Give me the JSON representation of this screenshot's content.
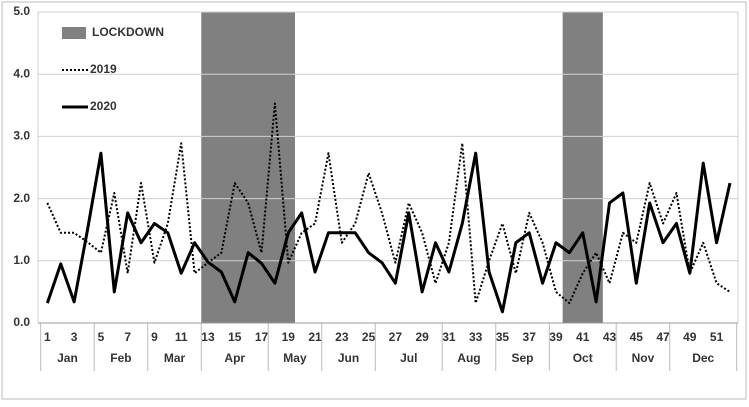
{
  "chart_data": {
    "type": "line",
    "x": [
      1,
      2,
      3,
      4,
      5,
      6,
      7,
      8,
      9,
      10,
      11,
      12,
      13,
      14,
      15,
      16,
      17,
      18,
      19,
      20,
      21,
      22,
      23,
      24,
      25,
      26,
      27,
      28,
      29,
      30,
      31,
      32,
      33,
      34,
      35,
      36,
      37,
      38,
      39,
      40,
      41,
      42,
      43,
      44,
      45,
      46,
      47,
      48,
      49,
      50,
      51,
      52
    ],
    "series": [
      {
        "name": "2019",
        "color": "#000000",
        "dash": "dotted",
        "values": [
          1.93,
          1.45,
          1.45,
          1.3,
          1.13,
          2.09,
          0.8,
          2.25,
          0.97,
          1.6,
          2.89,
          0.8,
          0.97,
          1.13,
          2.25,
          1.93,
          1.13,
          3.53,
          0.97,
          1.45,
          1.6,
          2.73,
          1.29,
          1.6,
          2.41,
          1.77,
          0.97,
          1.93,
          1.45,
          0.64,
          1.29,
          2.89,
          0.32,
          1.0,
          1.6,
          0.8,
          1.77,
          1.29,
          0.5,
          0.32,
          0.8,
          1.13,
          0.64,
          1.45,
          1.29,
          2.25,
          1.6,
          2.09,
          0.8,
          1.29,
          0.64,
          0.5
        ]
      },
      {
        "name": "2020",
        "color": "#000000",
        "dash": "solid",
        "values": [
          0.32,
          0.95,
          0.34,
          1.5,
          2.73,
          0.5,
          1.77,
          1.29,
          1.6,
          1.45,
          0.8,
          1.29,
          0.98,
          0.82,
          0.34,
          1.13,
          0.96,
          0.64,
          1.45,
          1.77,
          0.82,
          1.45,
          1.45,
          1.45,
          1.13,
          0.97,
          0.64,
          1.77,
          0.5,
          1.29,
          0.82,
          1.6,
          2.73,
          0.82,
          0.18,
          1.29,
          1.45,
          0.64,
          1.29,
          1.13,
          1.45,
          0.34,
          1.93,
          2.09,
          0.64,
          1.93,
          1.29,
          1.6,
          0.8,
          2.57,
          1.29,
          2.25
        ]
      }
    ],
    "band_name": "LOCKDOWN",
    "band_color": "#808080",
    "bands": [
      [
        12.5,
        19.5
      ],
      [
        39.5,
        42.5
      ]
    ],
    "months": [
      {
        "label": "Jan",
        "start": 0.5,
        "end": 4.5
      },
      {
        "label": "Feb",
        "start": 4.5,
        "end": 8.5
      },
      {
        "label": "Mar",
        "start": 8.5,
        "end": 12.5
      },
      {
        "label": "Apr",
        "start": 12.5,
        "end": 17.5
      },
      {
        "label": "May",
        "start": 17.5,
        "end": 21.5
      },
      {
        "label": "Jun",
        "start": 21.5,
        "end": 25.5
      },
      {
        "label": "Jul",
        "start": 25.5,
        "end": 30.5
      },
      {
        "label": "Aug",
        "start": 30.5,
        "end": 34.5
      },
      {
        "label": "Sep",
        "start": 34.5,
        "end": 38.5
      },
      {
        "label": "Oct",
        "start": 38.5,
        "end": 43.5
      },
      {
        "label": "Nov",
        "start": 43.5,
        "end": 47.5
      },
      {
        "label": "Dec",
        "start": 47.5,
        "end": 52.5
      }
    ],
    "xlim": [
      0.3,
      52.6
    ],
    "xticks": [
      1,
      3,
      5,
      7,
      9,
      11,
      13,
      15,
      17,
      19,
      21,
      23,
      25,
      27,
      29,
      31,
      33,
      35,
      37,
      39,
      41,
      43,
      45,
      47,
      49,
      51
    ],
    "ylim": [
      0,
      5
    ],
    "yticks": [
      {
        "value": 0,
        "label": "0.0"
      },
      {
        "value": 1,
        "label": "1.0"
      },
      {
        "value": 2,
        "label": "2.0"
      },
      {
        "value": 3,
        "label": "3.0"
      },
      {
        "value": 4,
        "label": "4.0"
      },
      {
        "value": 5,
        "label": "5.0"
      }
    ],
    "grid": true
  }
}
